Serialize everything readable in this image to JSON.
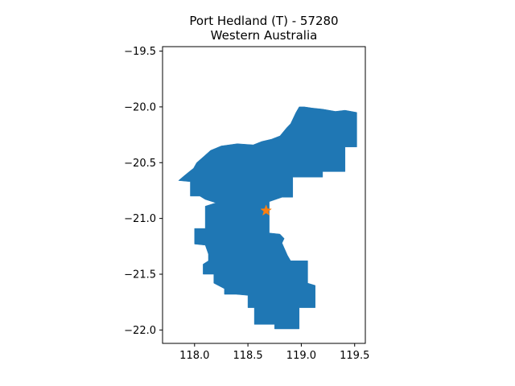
{
  "title_line1": "Port Hedland (T) - 57280",
  "title_line2": "Western Australia",
  "colors": {
    "region_fill": "#1f77b4",
    "marker": "#ff7f0e",
    "axis": "#000000",
    "background": "#ffffff"
  },
  "chart_data": {
    "type": "map",
    "xlim": [
      117.7,
      119.6
    ],
    "ylim": [
      -22.12,
      -19.46
    ],
    "x_ticks": [
      {
        "value": 118.0,
        "label": "118.0"
      },
      {
        "value": 118.5,
        "label": "118.5"
      },
      {
        "value": 119.0,
        "label": "119.0"
      },
      {
        "value": 119.5,
        "label": "119.5"
      }
    ],
    "y_ticks": [
      {
        "value": -19.5,
        "label": "−19.5"
      },
      {
        "value": -20.0,
        "label": "−20.0"
      },
      {
        "value": -20.5,
        "label": "−20.5"
      },
      {
        "value": -21.0,
        "label": "−21.0"
      },
      {
        "value": -21.5,
        "label": "−21.5"
      },
      {
        "value": -22.0,
        "label": "−22.0"
      }
    ],
    "grid": false,
    "region": {
      "name": "Port Hedland (T)",
      "outline": [
        [
          117.85,
          -20.66
        ],
        [
          117.9,
          -20.62
        ],
        [
          117.95,
          -20.58
        ],
        [
          117.99,
          -20.55
        ],
        [
          118.02,
          -20.5
        ],
        [
          118.08,
          -20.45
        ],
        [
          118.15,
          -20.39
        ],
        [
          118.25,
          -20.35
        ],
        [
          118.4,
          -20.33
        ],
        [
          118.55,
          -20.34
        ],
        [
          118.63,
          -20.31
        ],
        [
          118.72,
          -20.29
        ],
        [
          118.8,
          -20.26
        ],
        [
          118.86,
          -20.19
        ],
        [
          118.9,
          -20.15
        ],
        [
          118.95,
          -20.05
        ],
        [
          118.98,
          -20.0
        ],
        [
          119.03,
          -20.0
        ],
        [
          119.1,
          -20.01
        ],
        [
          119.2,
          -20.02
        ],
        [
          119.32,
          -20.04
        ],
        [
          119.41,
          -20.03
        ],
        [
          119.52,
          -20.05
        ],
        [
          119.52,
          -20.36
        ],
        [
          119.41,
          -20.36
        ],
        [
          119.41,
          -20.58
        ],
        [
          119.2,
          -20.58
        ],
        [
          119.2,
          -20.63
        ],
        [
          118.92,
          -20.63
        ],
        [
          118.92,
          -20.81
        ],
        [
          118.82,
          -20.81
        ],
        [
          118.7,
          -20.85
        ],
        [
          118.7,
          -21.13
        ],
        [
          118.8,
          -21.14
        ],
        [
          118.84,
          -21.18
        ],
        [
          118.82,
          -21.22
        ],
        [
          118.87,
          -21.33
        ],
        [
          118.9,
          -21.38
        ],
        [
          119.06,
          -21.38
        ],
        [
          119.06,
          -21.58
        ],
        [
          119.13,
          -21.6
        ],
        [
          119.13,
          -21.8
        ],
        [
          118.98,
          -21.8
        ],
        [
          118.98,
          -21.99
        ],
        [
          118.75,
          -21.99
        ],
        [
          118.75,
          -21.95
        ],
        [
          118.56,
          -21.95
        ],
        [
          118.56,
          -21.8
        ],
        [
          118.5,
          -21.8
        ],
        [
          118.5,
          -21.69
        ],
        [
          118.39,
          -21.68
        ],
        [
          118.28,
          -21.68
        ],
        [
          118.28,
          -21.63
        ],
        [
          118.18,
          -21.58
        ],
        [
          118.18,
          -21.5
        ],
        [
          118.08,
          -21.5
        ],
        [
          118.08,
          -21.41
        ],
        [
          118.13,
          -21.38
        ],
        [
          118.13,
          -21.32
        ],
        [
          118.1,
          -21.24
        ],
        [
          118.0,
          -21.23
        ],
        [
          118.0,
          -21.09
        ],
        [
          118.1,
          -21.09
        ],
        [
          118.1,
          -20.89
        ],
        [
          118.2,
          -20.86
        ],
        [
          118.1,
          -20.83
        ],
        [
          118.05,
          -20.8
        ],
        [
          117.96,
          -20.8
        ],
        [
          117.96,
          -20.67
        ]
      ]
    },
    "marker": {
      "x": 118.67,
      "y": -20.93,
      "shape": "star"
    }
  }
}
